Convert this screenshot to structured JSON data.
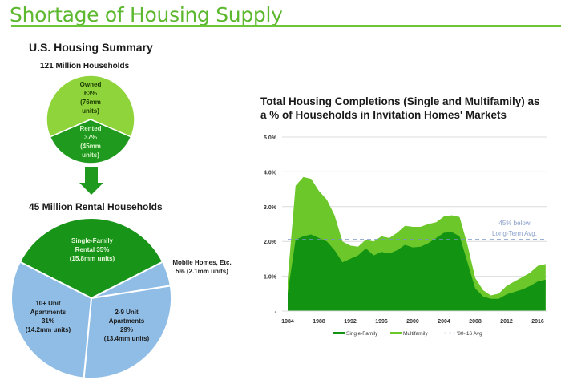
{
  "slide": {
    "title": "Shortage of Housing Supply",
    "accent_color": "#5cb82e"
  },
  "summary": {
    "heading": "U.S. Housing Summary",
    "households_label": "121 Million Households",
    "slices": [
      {
        "name": "Owned",
        "pct_label": "63%",
        "units_label": "(76mm",
        "units_label2": "units)",
        "value": 63,
        "color": "#8fd43a"
      },
      {
        "name": "Rented",
        "pct_label": "37%",
        "units_label": "(45mm",
        "units_label2": "units)",
        "value": 37,
        "color": "#1f9a1f"
      }
    ]
  },
  "rental": {
    "heading": "45 Million Rental Households",
    "slices": [
      {
        "line1": "Single-Family",
        "line2": "Rental 35%",
        "line3": "(15.8mm units)",
        "value": 35,
        "color": "#189418"
      },
      {
        "line1": "Mobile Homes, Etc.",
        "line2": "5% (2.1mm units)",
        "value": 5,
        "color": "#8fbde6"
      },
      {
        "line1": "2-9 Unit",
        "line2": "Apartments",
        "line3": "29%",
        "line4": "(13.4mm units)",
        "value": 29,
        "color": "#8fbde6"
      },
      {
        "line1": "10+ Unit",
        "line2": "Apartments",
        "line3": "31%",
        "line4": "(14.2mm units)",
        "value": 31,
        "color": "#8fbde6"
      }
    ]
  },
  "chart_data": {
    "type": "area",
    "title_line1": "Total Housing Completions (Single and Multifamily) as",
    "title_line2": "a % of Households in Invitation Homes' Markets",
    "xlabel": "",
    "ylabel": "",
    "ylim": [
      0,
      5
    ],
    "yticks": [
      {
        "value": 0,
        "label": "-"
      },
      {
        "value": 1,
        "label": "1.0%"
      },
      {
        "value": 2,
        "label": "2.0%"
      },
      {
        "value": 3,
        "label": "3.0%"
      },
      {
        "value": 4,
        "label": "4.0%"
      },
      {
        "value": 5,
        "label": "5.0%"
      }
    ],
    "xticks": [
      "1984",
      "1988",
      "1992",
      "1996",
      "2000",
      "2004",
      "2008",
      "2012",
      "2016"
    ],
    "grid": true,
    "x": [
      1984,
      1985,
      1986,
      1987,
      1988,
      1989,
      1990,
      1991,
      1992,
      1993,
      1994,
      1995,
      1996,
      1997,
      1998,
      1999,
      2000,
      2001,
      2002,
      2003,
      2004,
      2005,
      2006,
      2007,
      2008,
      2009,
      2010,
      2011,
      2012,
      2013,
      2014,
      2015,
      2016,
      2017
    ],
    "series": [
      {
        "name": "Single-Family",
        "color": "#129412",
        "values": [
          0.5,
          2.05,
          2.15,
          2.2,
          2.1,
          2.0,
          1.75,
          1.4,
          1.5,
          1.6,
          1.8,
          1.6,
          1.7,
          1.65,
          1.75,
          1.9,
          1.83,
          1.85,
          1.95,
          2.1,
          2.25,
          2.27,
          2.15,
          1.4,
          0.65,
          0.42,
          0.35,
          0.35,
          0.48,
          0.55,
          0.62,
          0.72,
          0.85,
          0.9
        ]
      },
      {
        "name": "Multifamily",
        "color": "#6cc72a",
        "values": [
          0.9,
          3.6,
          3.85,
          3.8,
          3.45,
          3.2,
          2.75,
          2.0,
          1.88,
          1.85,
          2.05,
          2.0,
          2.15,
          2.1,
          2.25,
          2.45,
          2.42,
          2.42,
          2.5,
          2.55,
          2.72,
          2.75,
          2.7,
          1.9,
          0.95,
          0.6,
          0.45,
          0.5,
          0.72,
          0.85,
          0.97,
          1.1,
          1.3,
          1.35
        ]
      }
    ],
    "average": {
      "name": "'80-'16 Avg",
      "value": 2.05,
      "color": "#7a95c8"
    },
    "annotation_line1": "45% below",
    "annotation_line2": "Long-Term Avg.",
    "legend_placement": "bottom"
  }
}
